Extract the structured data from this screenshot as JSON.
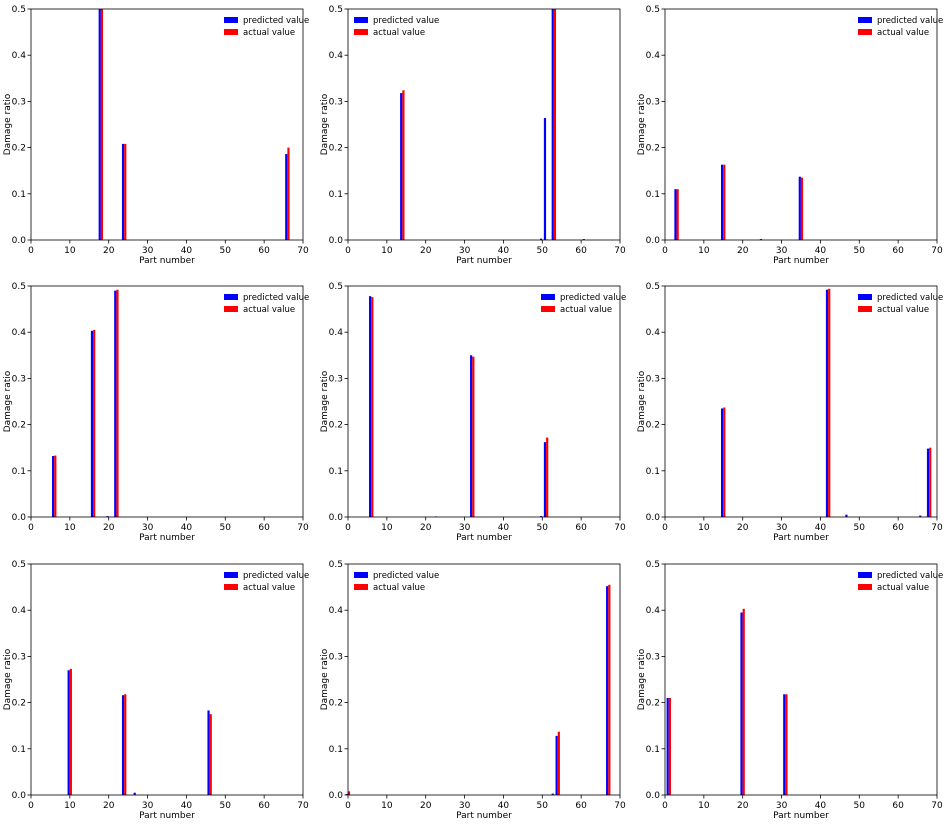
{
  "chart_data": [
    {
      "type": "bar",
      "xlabel": "Part number",
      "ylabel": "Damage ratio",
      "xlim": [
        0,
        70
      ],
      "ylim": [
        0,
        0.5
      ],
      "xticks": [
        "0",
        "10",
        "20",
        "30",
        "40",
        "50",
        "60",
        "70"
      ],
      "yticks": [
        "0.0",
        "0.1",
        "0.2",
        "0.3",
        "0.4",
        "0.5"
      ],
      "legend": "top-right",
      "grid": false,
      "series": [
        {
          "name": "predicted value",
          "color": "#0000ff",
          "points": [
            [
              18,
              0.5
            ],
            [
              24,
              0.208
            ],
            [
              66,
              0.186
            ]
          ]
        },
        {
          "name": "actual value",
          "color": "#ff0000",
          "points": [
            [
              18,
              0.5
            ],
            [
              24,
              0.208
            ],
            [
              66,
              0.2
            ]
          ]
        }
      ]
    },
    {
      "type": "bar",
      "xlabel": "Part number",
      "ylabel": "Damage ratio",
      "xlim": [
        0,
        70
      ],
      "ylim": [
        0,
        0.5
      ],
      "xticks": [
        "0",
        "10",
        "20",
        "30",
        "40",
        "50",
        "60",
        "70"
      ],
      "yticks": [
        "0.0",
        "0.1",
        "0.2",
        "0.3",
        "0.4",
        "0.5"
      ],
      "legend": "top-left",
      "grid": false,
      "series": [
        {
          "name": "predicted value",
          "color": "#0000ff",
          "points": [
            [
              14,
              0.318
            ],
            [
              50,
              0.003
            ],
            [
              51,
              0.264
            ],
            [
              53,
              0.5
            ],
            [
              61,
              0.002
            ]
          ]
        },
        {
          "name": "actual value",
          "color": "#ff0000",
          "points": [
            [
              14,
              0.324
            ],
            [
              51,
              0.0
            ],
            [
              53,
              0.5
            ]
          ]
        }
      ]
    },
    {
      "type": "bar",
      "xlabel": "Part number",
      "ylabel": "Damage ratio",
      "xlim": [
        0,
        70
      ],
      "ylim": [
        0,
        0.5
      ],
      "xticks": [
        "0",
        "10",
        "20",
        "30",
        "40",
        "50",
        "60",
        "70"
      ],
      "yticks": [
        "0.0",
        "0.1",
        "0.2",
        "0.3",
        "0.4",
        "0.5"
      ],
      "legend": "top-right",
      "grid": false,
      "series": [
        {
          "name": "predicted value",
          "color": "#0000ff",
          "points": [
            [
              3,
              0.11
            ],
            [
              15,
              0.163
            ],
            [
              25,
              0.002
            ],
            [
              35,
              0.137
            ]
          ]
        },
        {
          "name": "actual value",
          "color": "#ff0000",
          "points": [
            [
              3,
              0.11
            ],
            [
              15,
              0.163
            ],
            [
              35,
              0.135
            ]
          ]
        }
      ]
    },
    {
      "type": "bar",
      "xlabel": "Part number",
      "ylabel": "Damage ratio",
      "xlim": [
        0,
        70
      ],
      "ylim": [
        0,
        0.5
      ],
      "xticks": [
        "0",
        "10",
        "20",
        "30",
        "40",
        "50",
        "60",
        "70"
      ],
      "yticks": [
        "0.0",
        "0.1",
        "0.2",
        "0.3",
        "0.4",
        "0.5"
      ],
      "legend": "top-right",
      "grid": false,
      "series": [
        {
          "name": "predicted value",
          "color": "#0000ff",
          "points": [
            [
              6,
              0.132
            ],
            [
              16,
              0.403
            ],
            [
              20,
              0.002
            ],
            [
              22,
              0.49
            ]
          ]
        },
        {
          "name": "actual value",
          "color": "#ff0000",
          "points": [
            [
              6,
              0.133
            ],
            [
              16,
              0.405
            ],
            [
              22,
              0.492
            ]
          ]
        }
      ]
    },
    {
      "type": "bar",
      "xlabel": "Part number",
      "ylabel": "Damage ratio",
      "xlim": [
        0,
        70
      ],
      "ylim": [
        0,
        0.5
      ],
      "xticks": [
        "0",
        "10",
        "20",
        "30",
        "40",
        "50",
        "60",
        "70"
      ],
      "yticks": [
        "0.0",
        "0.1",
        "0.2",
        "0.3",
        "0.4",
        "0.5"
      ],
      "legend": "top-right",
      "grid": false,
      "series": [
        {
          "name": "predicted value",
          "color": "#0000ff",
          "points": [
            [
              6,
              0.478
            ],
            [
              23,
              0.001
            ],
            [
              32,
              0.35
            ],
            [
              50,
              0.002
            ],
            [
              51,
              0.162
            ]
          ]
        },
        {
          "name": "actual value",
          "color": "#ff0000",
          "points": [
            [
              6,
              0.476
            ],
            [
              32,
              0.347
            ],
            [
              51,
              0.172
            ]
          ]
        }
      ]
    },
    {
      "type": "bar",
      "xlabel": "Part number",
      "ylabel": "Damage ratio",
      "xlim": [
        0,
        70
      ],
      "ylim": [
        0,
        0.5
      ],
      "xticks": [
        "0",
        "10",
        "20",
        "30",
        "40",
        "50",
        "60",
        "70"
      ],
      "yticks": [
        "0.0",
        "0.1",
        "0.2",
        "0.3",
        "0.4",
        "0.5"
      ],
      "legend": "top-right",
      "grid": false,
      "series": [
        {
          "name": "predicted value",
          "color": "#0000ff",
          "points": [
            [
              15,
              0.235
            ],
            [
              42,
              0.492
            ],
            [
              47,
              0.005
            ],
            [
              66,
              0.003
            ],
            [
              68,
              0.148
            ]
          ]
        },
        {
          "name": "actual value",
          "color": "#ff0000",
          "points": [
            [
              15,
              0.237
            ],
            [
              42,
              0.494
            ],
            [
              68,
              0.15
            ]
          ]
        }
      ]
    },
    {
      "type": "bar",
      "xlabel": "Part number",
      "ylabel": "Damage ratio",
      "xlim": [
        0,
        70
      ],
      "ylim": [
        0,
        0.5
      ],
      "xticks": [
        "0",
        "10",
        "20",
        "30",
        "40",
        "50",
        "60",
        "70"
      ],
      "yticks": [
        "0.0",
        "0.1",
        "0.2",
        "0.3",
        "0.4",
        "0.5"
      ],
      "legend": "top-right",
      "grid": false,
      "series": [
        {
          "name": "predicted value",
          "color": "#0000ff",
          "points": [
            [
              10,
              0.27
            ],
            [
              24,
              0.216
            ],
            [
              27,
              0.005
            ],
            [
              46,
              0.183
            ]
          ]
        },
        {
          "name": "actual value",
          "color": "#ff0000",
          "points": [
            [
              10,
              0.273
            ],
            [
              24,
              0.218
            ],
            [
              46,
              0.175
            ]
          ]
        }
      ]
    },
    {
      "type": "bar",
      "xlabel": "Part number",
      "ylabel": "Damage ratio",
      "xlim": [
        0,
        70
      ],
      "ylim": [
        0,
        0.5
      ],
      "xticks": [
        "0",
        "10",
        "20",
        "30",
        "40",
        "50",
        "60",
        "70"
      ],
      "yticks": [
        "0.0",
        "0.1",
        "0.2",
        "0.3",
        "0.4",
        "0.5"
      ],
      "legend": "top-left",
      "grid": false,
      "series": [
        {
          "name": "predicted value",
          "color": "#0000ff",
          "points": [
            [
              0,
              0.002
            ],
            [
              53,
              0.003
            ],
            [
              54,
              0.128
            ],
            [
              67,
              0.452
            ]
          ]
        },
        {
          "name": "actual value",
          "color": "#ff0000",
          "points": [
            [
              0,
              0.008
            ],
            [
              54,
              0.137
            ],
            [
              67,
              0.455
            ]
          ]
        }
      ]
    },
    {
      "type": "bar",
      "xlabel": "Part number",
      "ylabel": "Damage ratio",
      "xlim": [
        0,
        70
      ],
      "ylim": [
        0,
        0.5
      ],
      "xticks": [
        "0",
        "10",
        "20",
        "30",
        "40",
        "50",
        "60",
        "70"
      ],
      "yticks": [
        "0.0",
        "0.1",
        "0.2",
        "0.3",
        "0.4",
        "0.5"
      ],
      "legend": "top-right",
      "grid": false,
      "series": [
        {
          "name": "predicted value",
          "color": "#0000ff",
          "points": [
            [
              1,
              0.21
            ],
            [
              20,
              0.395
            ],
            [
              31,
              0.218
            ]
          ]
        },
        {
          "name": "actual value",
          "color": "#ff0000",
          "points": [
            [
              1,
              0.21
            ],
            [
              20,
              0.403
            ],
            [
              31,
              0.218
            ]
          ]
        }
      ]
    }
  ]
}
